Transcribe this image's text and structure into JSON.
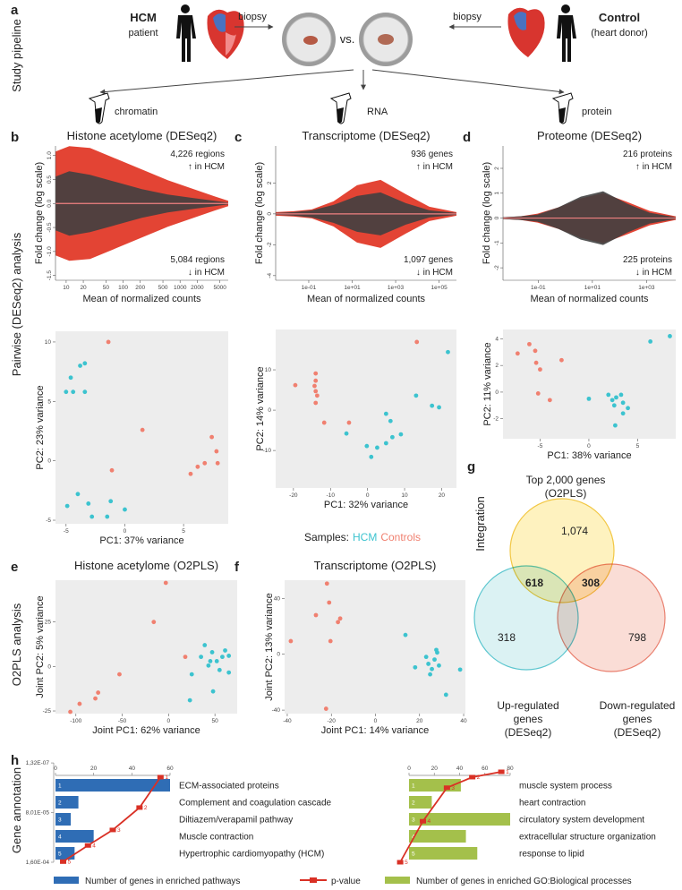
{
  "panel_labels": [
    "a",
    "b",
    "c",
    "d",
    "e",
    "f",
    "g",
    "h"
  ],
  "row_labels": [
    "Study pipeline",
    "Pairwise (DESeq2) analysis",
    "O2PLS analysis",
    "Gene annotation",
    "Integration"
  ],
  "pipeline": {
    "hcm": "HCM",
    "hcm_sub": "patient",
    "control": "Control",
    "control_sub": "(heart donor)",
    "biopsy": "biopsy",
    "vs": "vs.",
    "outputs": [
      "chromatin",
      "RNA",
      "protein"
    ]
  },
  "samples_label": "Samples:",
  "venn": {
    "title": [
      "Top 2,000 genes",
      "(O2PLS)"
    ],
    "sets": [
      {
        "color": "#f2c744",
        "fill": "#fdeeaa"
      },
      {
        "color": "#5cc6cf",
        "fill": "#cfeeef"
      },
      {
        "color": "#e9806f",
        "fill": "#f8d2c8"
      }
    ],
    "counts": {
      "top_only": "1,074",
      "top_up": "618",
      "top_down": "308",
      "up_only": "318",
      "down_only": "798"
    },
    "up_label": [
      "Up-regulated",
      "genes",
      "(DESeq2)"
    ],
    "down_label": [
      "Down-regulated",
      "genes",
      "(DESeq2)"
    ]
  },
  "chart_data": [
    {
      "type": "ma",
      "title": "Histone acetylome (DESeq2)",
      "xlabel": "Mean of normalized counts",
      "ylabel": "Fold change (log scale)",
      "log_x": true,
      "xlim": [
        6.5,
        7000
      ],
      "xticks": [
        10,
        20,
        50,
        100,
        200,
        500,
        1000,
        2000,
        5000
      ],
      "ylim": [
        -1.6,
        1.2
      ],
      "yticks": [
        {
          "value": 1,
          "label": "1.0"
        },
        0.5,
        {
          "value": 0,
          "label": "0.0"
        },
        -0.5,
        {
          "value": -1,
          "label": "-1.0"
        },
        -1.5
      ],
      "hline": 0,
      "hline_color": "#f08080",
      "colors": {
        "changed": "#e0301e",
        "unchanged": "#404040"
      },
      "annotations": {
        "up": [
          "4,226 regions",
          "↑ in HCM"
        ],
        "down": [
          "5,084 regions",
          "↓ in HCM"
        ]
      }
    },
    {
      "type": "ma",
      "title": "Transcriptome (DESeq2)",
      "xlabel": "Mean of normalized counts",
      "ylabel": "Fold change (log scale)",
      "log_x": true,
      "xlim": [
        0.003,
        630000
      ],
      "xticks": [
        {
          "value": 0.1,
          "label": "1e-01"
        },
        {
          "value": 10,
          "label": "1e+01"
        },
        {
          "value": 1000,
          "label": "1e+03"
        },
        {
          "value": 100000,
          "label": "1e+05"
        }
      ],
      "ylim": [
        -4.3,
        4.4
      ],
      "yticks": [
        2,
        0,
        -2,
        -4
      ],
      "hline": 0,
      "hline_color": "#f08080",
      "colors": {
        "changed": "#e0301e",
        "unchanged": "#404040"
      },
      "annotations": {
        "up": [
          "936 genes",
          "↑ in HCM"
        ],
        "down": [
          "1,097 genes",
          "↓ in HCM"
        ]
      }
    },
    {
      "type": "ma",
      "title": "Proteome (DESeq2)",
      "xlabel": "Mean of normalized counts",
      "ylabel": "Fold change (log scale)",
      "log_x": true,
      "xlim": [
        0.005,
        12000
      ],
      "xticks": [
        {
          "value": 0.1,
          "label": "1e-01"
        },
        {
          "value": 10,
          "label": "1e+01"
        },
        {
          "value": 1000,
          "label": "1e+03"
        }
      ],
      "ylim": [
        -2.5,
        2.9
      ],
      "yticks": [
        2,
        1,
        0,
        -1,
        -2
      ],
      "hline": 0,
      "hline_color": "#f08080",
      "colors": {
        "changed": "#e0301e",
        "unchanged": "#404040"
      },
      "annotations": {
        "up": [
          "216 proteins",
          "↑ in HCM"
        ],
        "down": [
          "225 proteins",
          "↓ in HCM"
        ]
      }
    },
    {
      "type": "scatter",
      "xlabel": "PC1: 37% variance",
      "ylabel": "PC2: 23% variance",
      "xlim": [
        -5.9,
        8.8
      ],
      "ylim": [
        -5.3,
        10.9
      ],
      "xticks": [
        -5,
        0,
        5
      ],
      "yticks": [
        10,
        5,
        0,
        -5
      ],
      "series": [
        {
          "name": "HCM",
          "color": "#3cc3cf",
          "x": [
            -3.8,
            -3.4,
            -4.6,
            -5.0,
            -4.4,
            -3.4,
            -4.0,
            -3.1,
            -1.2,
            0,
            -1.5,
            -2.8,
            -4.9
          ],
          "values": [
            8.0,
            8.2,
            7.0,
            5.8,
            5.8,
            5.8,
            -2.8,
            -3.6,
            -3.4,
            -4.1,
            -4.7,
            -4.7,
            -3.8
          ]
        },
        {
          "name": "Controls",
          "color": "#f08070",
          "x": [
            -1.4,
            1.5,
            -1.1,
            5.6,
            6.2,
            6.8,
            7.4,
            7.8,
            7.9
          ],
          "values": [
            10.0,
            2.6,
            -0.8,
            -1.1,
            -0.5,
            -0.2,
            2.0,
            0.8,
            -0.2
          ]
        }
      ]
    },
    {
      "type": "scatter",
      "xlabel": "PC1: 32% variance",
      "ylabel": "PC2: 14% variance",
      "xlim": [
        -24.8,
        24
      ],
      "ylim": [
        -19.3,
        20
      ],
      "xticks": [
        -20,
        -10,
        0,
        10,
        20
      ],
      "yticks": [
        10,
        0,
        -10
      ],
      "series": [
        {
          "name": "HCM",
          "color": "#3cc3cf",
          "x": [
            -5.7,
            -0.2,
            1,
            2.6,
            5,
            6.7,
            5,
            9,
            13.1,
            17.4,
            19.3,
            21.7,
            6.2
          ],
          "values": [
            -5.8,
            -8.9,
            -11.6,
            -9.3,
            -8.2,
            -6.7,
            -0.9,
            -6,
            3.6,
            1.1,
            0.7,
            14.4,
            -2.7
          ]
        },
        {
          "name": "Controls",
          "color": "#f08070",
          "x": [
            -19.5,
            -14,
            -14,
            -14.3,
            -14,
            -13.6,
            -14,
            -11.7,
            -5,
            13.3
          ],
          "values": [
            6.2,
            9.1,
            7.3,
            6,
            4.7,
            3.6,
            1.8,
            -3.1,
            -3.1,
            16.9
          ]
        }
      ]
    },
    {
      "type": "scatter",
      "xlabel": "PC1: 38% variance",
      "ylabel": "PC2: 11% variance",
      "xlim": [
        -8.8,
        8.9
      ],
      "ylim": [
        -3.5,
        4.7
      ],
      "xticks": [
        -5,
        0,
        5
      ],
      "yticks": [
        4,
        2,
        0,
        -2
      ],
      "series": [
        {
          "name": "HCM",
          "color": "#3cc3cf",
          "x": [
            0,
            2,
            2.8,
            3.3,
            3.5,
            2.6,
            3.5,
            4.0,
            2.7,
            6.3,
            8.3,
            2.4
          ],
          "values": [
            -0.5,
            -0.2,
            -0.4,
            -0.2,
            -0.8,
            -1.0,
            -1.6,
            -1.2,
            -2.5,
            3.8,
            4.2,
            -0.6
          ]
        },
        {
          "name": "Controls",
          "color": "#f08070",
          "x": [
            -7.3,
            -6.1,
            -5.5,
            -5.4,
            -5.0,
            -5.2,
            -4.0,
            -2.8
          ],
          "values": [
            2.9,
            3.6,
            3.1,
            2.2,
            1.7,
            -0.1,
            -0.6,
            2.4
          ]
        }
      ]
    },
    {
      "type": "scatter",
      "title": "Histone acetylome (O2PLS)",
      "xlabel": "Joint PC1: 62% variance",
      "ylabel": "Joint PC2: 5% variance",
      "xlim": [
        -122,
        74
      ],
      "ylim": [
        -26.5,
        48.5
      ],
      "xticks": [
        -100,
        -50,
        0,
        50
      ],
      "yticks": [
        25,
        0,
        -25
      ],
      "series": [
        {
          "name": "HCM",
          "color": "#3cc3cf",
          "x": [
            23,
            25,
            35,
            39,
            43,
            47,
            52,
            55,
            58,
            61,
            65,
            48,
            45,
            65
          ],
          "values": [
            -19,
            -4.4,
            5.4,
            12,
            0.5,
            8,
            3,
            -2,
            5.4,
            9,
            -3.4,
            -14,
            3,
            6
          ]
        },
        {
          "name": "Controls",
          "color": "#f08070",
          "x": [
            -106,
            -96,
            -79,
            -76,
            -53,
            -16,
            -3,
            18
          ],
          "values": [
            -25.5,
            -21,
            -18,
            -14.7,
            -4.4,
            25,
            47,
            5.4
          ]
        }
      ]
    },
    {
      "type": "scatter",
      "title": "Transcriptome (O2PLS)",
      "xlabel": "Joint PC1: 14% variance",
      "ylabel": "Joint PC2: 13% variance",
      "xlim": [
        -41.2,
        40.8
      ],
      "ylim": [
        -42.5,
        53
      ],
      "xticks": [
        -40,
        -20,
        0,
        20,
        40
      ],
      "yticks": [
        40,
        0,
        -40
      ],
      "series": [
        {
          "name": "HCM",
          "color": "#3cc3cf",
          "x": [
            13.6,
            18,
            23,
            24,
            25.6,
            26.8,
            28,
            28.8,
            24.8,
            32,
            38.4,
            27.6
          ],
          "values": [
            13.8,
            -9.4,
            -1.9,
            -6.9,
            -10.6,
            -3.8,
            1.2,
            -8.1,
            -14.4,
            -29,
            -11,
            3.1
          ]
        },
        {
          "name": "Controls",
          "color": "#f08070",
          "x": [
            -22,
            -27,
            -38.4,
            -17,
            -16,
            -21,
            -20.4,
            -22.4
          ],
          "values": [
            50.6,
            28,
            9.4,
            23,
            25.6,
            37,
            9.4,
            -39
          ]
        }
      ]
    },
    {
      "type": "hbar",
      "categories": [
        "ECM-associated proteins",
        "Complement and coagulation cascade",
        "Diltiazem/verapamil pathway",
        "Muscle contraction",
        "Hypertrophic cardiomyopathy (HCM)"
      ],
      "ranks": [
        1,
        2,
        3,
        4,
        5
      ],
      "xlim": [
        0,
        60
      ],
      "xticks": [
        0,
        20,
        40,
        60
      ],
      "y2lim": [
        0,
        0.00016
      ],
      "y2ticks": [
        {
          "value": 1.32e-07,
          "label": "1,32E-07"
        },
        {
          "value": 8.01e-05,
          "label": "8,01E-05"
        },
        {
          "value": 0.00016,
          "label": "1,60E-04"
        }
      ],
      "series": [
        {
          "name": "Number of genes in enriched pathways",
          "color": "#2f6db5",
          "values": [
            60,
            12,
            8,
            20,
            10
          ]
        },
        {
          "name": "p-value",
          "color": "#d93025",
          "axis": "y2",
          "x": [
            55,
            44,
            30,
            17,
            4
          ],
          "values": [
            2.3e-05,
            7.2e-05,
            0.000108,
            0.000133,
            0.000159
          ]
        }
      ]
    },
    {
      "type": "hbar",
      "categories": [
        "muscle system process",
        "heart contraction",
        "circulatory system development",
        "extracellular structure organization",
        "response to lipid"
      ],
      "ranks": [
        1,
        2,
        3,
        4,
        5
      ],
      "xlim": [
        0,
        80
      ],
      "xticks": [
        0,
        20,
        40,
        60,
        80
      ],
      "y2lim": [
        0,
        0.00016
      ],
      "series": [
        {
          "name": "Number of genes in enriched GO:Biological processes",
          "color": "#a4c04b",
          "values": [
            41,
            18,
            80,
            45,
            54
          ]
        },
        {
          "name": "p-value",
          "color": "#d93025",
          "axis": "y2",
          "x": [
            73,
            50,
            30,
            11,
            -7
          ],
          "values": [
            1.44e-05,
            2.3e-05,
            4e-05,
            9.4e-05,
            0.00016
          ]
        }
      ]
    }
  ]
}
